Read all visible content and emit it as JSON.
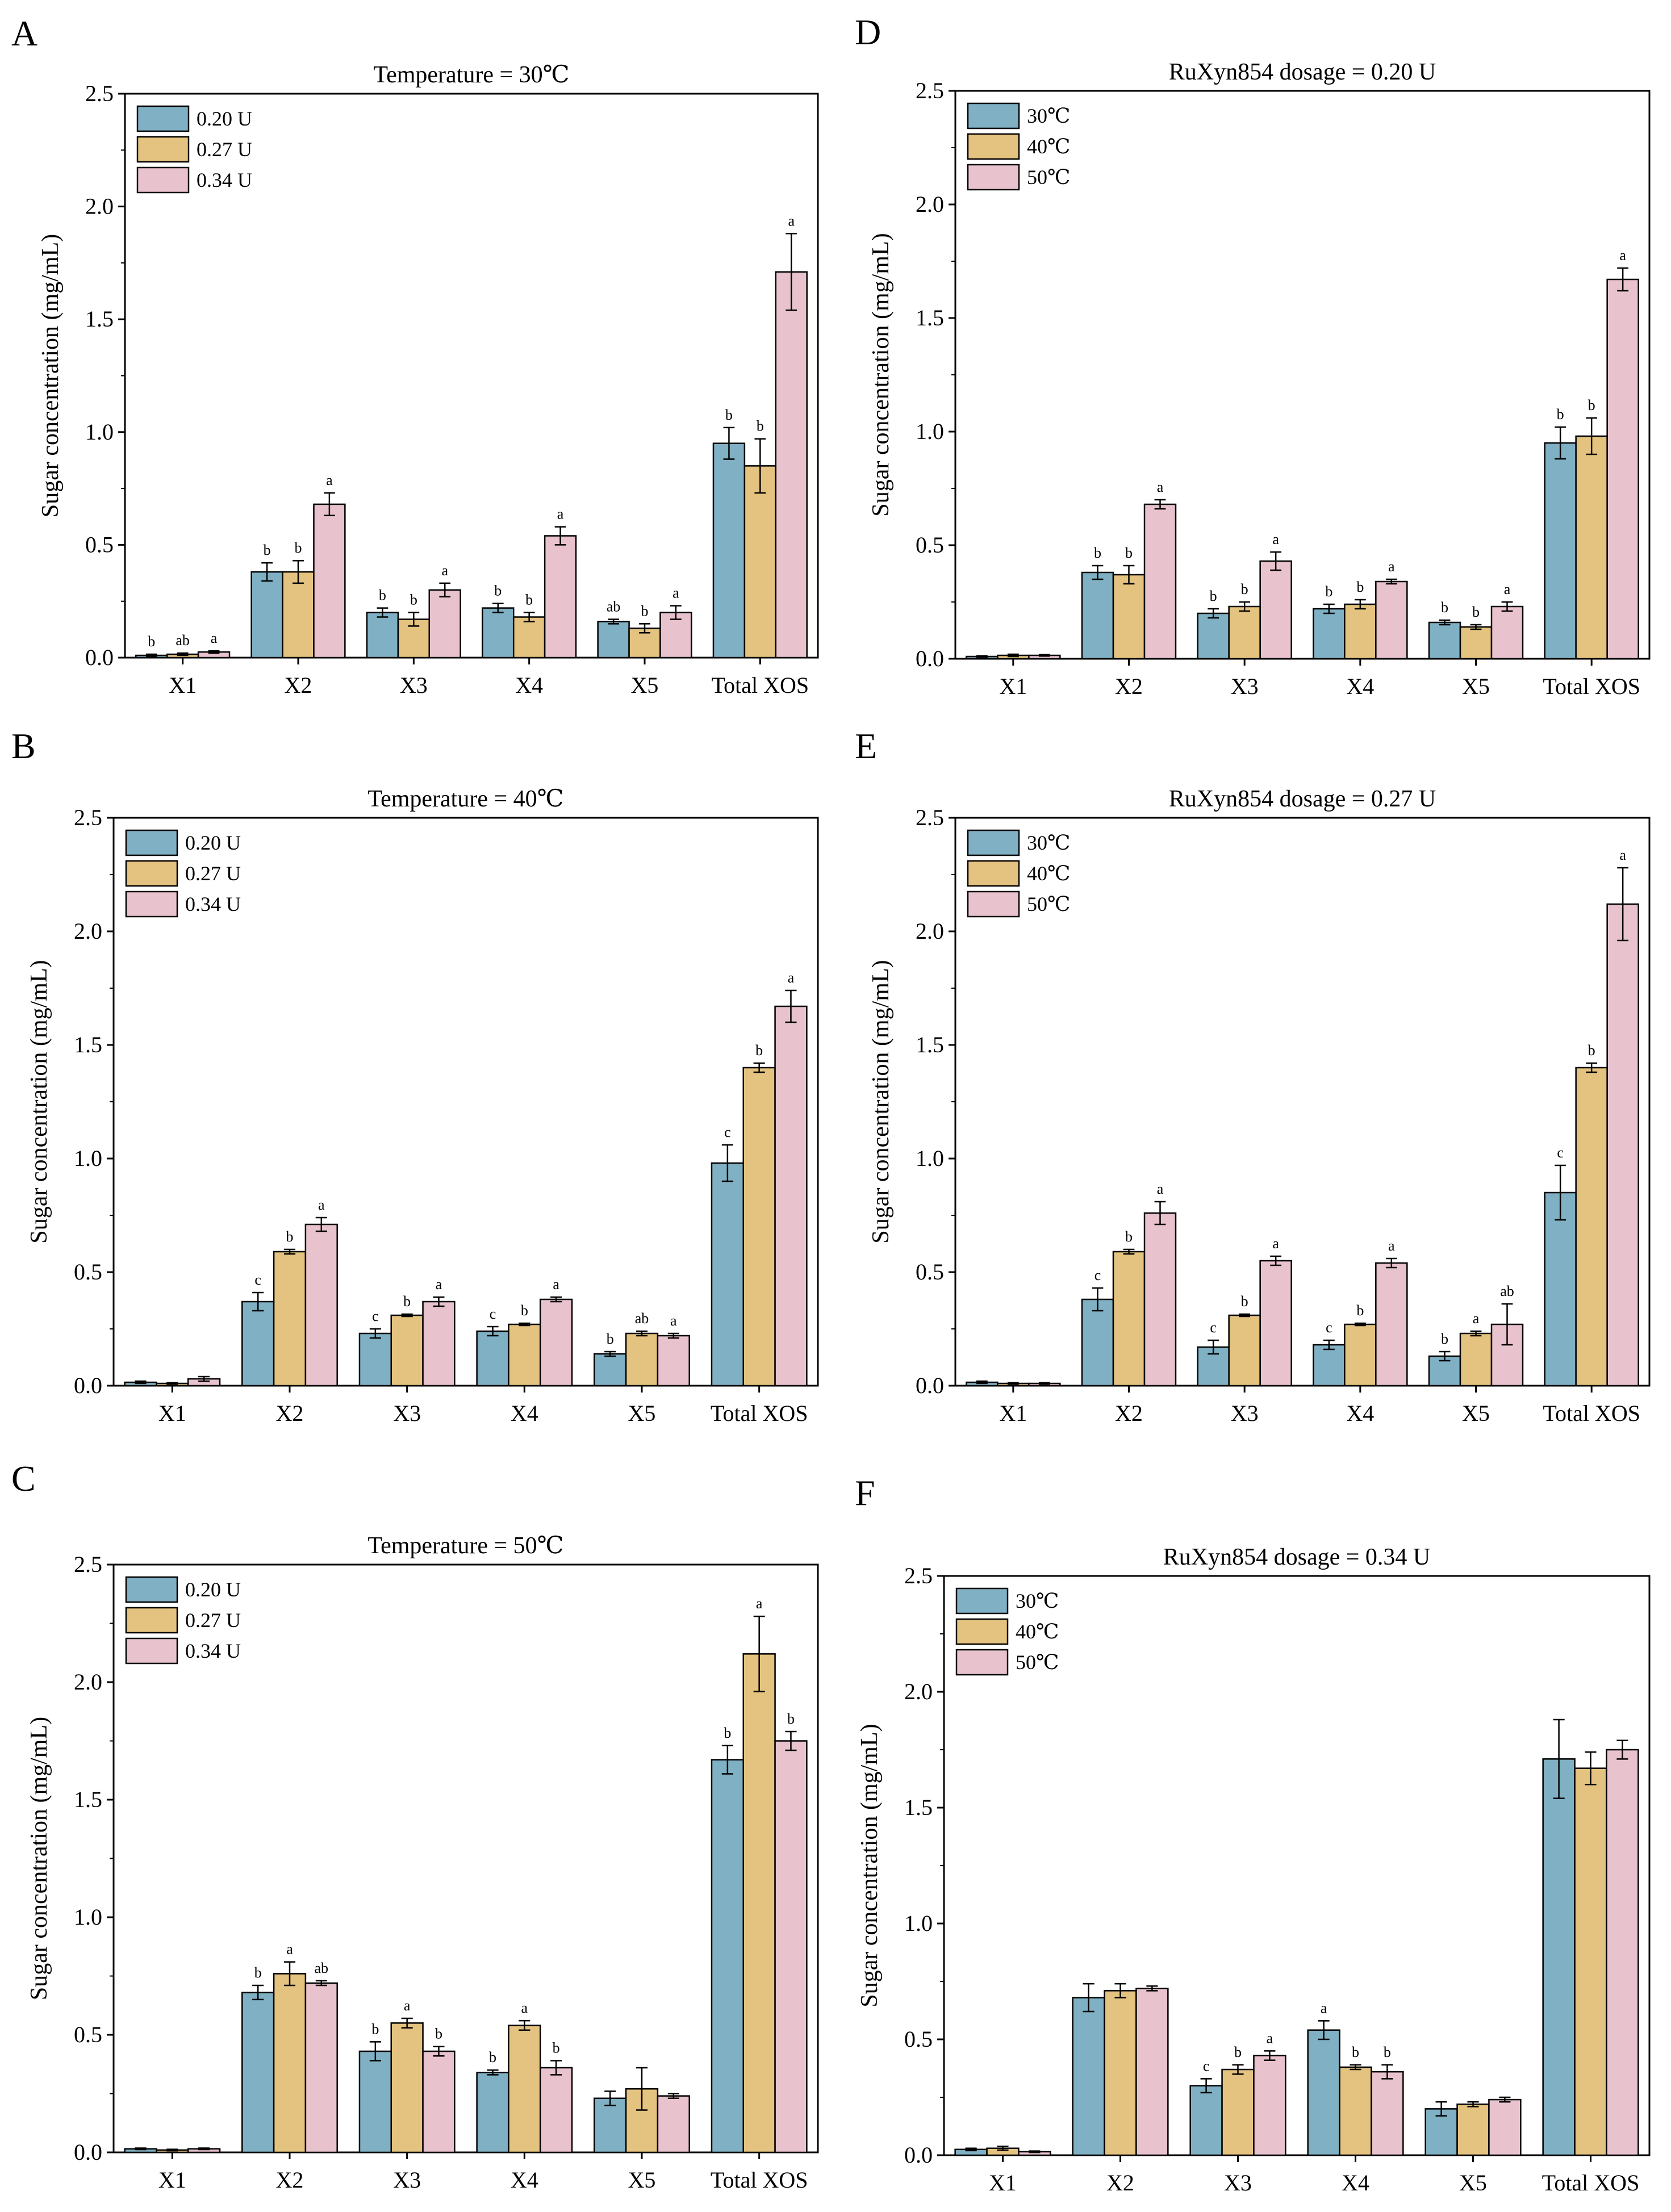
{
  "colors": {
    "blue": "#7fb0c3",
    "gold": "#e4c27f",
    "pink": "#e8c3cd",
    "frame": "#000000"
  },
  "chart_data": [
    {
      "panel": "A",
      "type": "bar",
      "title": "Temperature = 30℃",
      "xlabel": "",
      "ylabel": "Sugar concentration (mg/mL)",
      "ylim": [
        0,
        2.5
      ],
      "yticks": [
        "0.0",
        "0.5",
        "1.0",
        "1.5",
        "2.0",
        "2.5"
      ],
      "categories": [
        "X1",
        "X2",
        "X3",
        "X4",
        "X5",
        "Total XOS"
      ],
      "legend_position": "top-left",
      "series": [
        {
          "name": "0.20 U",
          "color": "blue",
          "values": [
            0.01,
            0.38,
            0.2,
            0.22,
            0.16,
            0.95
          ],
          "errors": [
            0.005,
            0.04,
            0.02,
            0.02,
            0.01,
            0.07
          ],
          "labels": [
            "b",
            "b",
            "b",
            "b",
            "ab",
            "b"
          ]
        },
        {
          "name": "0.27 U",
          "color": "gold",
          "values": [
            0.015,
            0.38,
            0.17,
            0.18,
            0.13,
            0.85
          ],
          "errors": [
            0.005,
            0.05,
            0.03,
            0.02,
            0.02,
            0.12
          ],
          "labels": [
            "ab",
            "b",
            "b",
            "b",
            "b",
            "b"
          ]
        },
        {
          "name": "0.34 U",
          "color": "pink",
          "values": [
            0.025,
            0.68,
            0.3,
            0.54,
            0.2,
            1.71
          ],
          "errors": [
            0.005,
            0.05,
            0.03,
            0.04,
            0.03,
            0.17
          ],
          "labels": [
            "a",
            "a",
            "a",
            "a",
            "a",
            "a"
          ]
        }
      ]
    },
    {
      "panel": "D",
      "type": "bar",
      "title": "RuXyn854 dosage = 0.20 U",
      "xlabel": "",
      "ylabel": "Sugar concentration (mg/mL)",
      "ylim": [
        0,
        2.5
      ],
      "yticks": [
        "0.0",
        "0.5",
        "1.0",
        "1.5",
        "2.0",
        "2.5"
      ],
      "categories": [
        "X1",
        "X2",
        "X3",
        "X4",
        "X5",
        "Total XOS"
      ],
      "legend_position": "top-left",
      "series": [
        {
          "name": "30℃",
          "color": "blue",
          "values": [
            0.01,
            0.38,
            0.2,
            0.22,
            0.16,
            0.95
          ],
          "errors": [
            0.003,
            0.03,
            0.02,
            0.02,
            0.01,
            0.07
          ],
          "labels": [
            "",
            "b",
            "b",
            "b",
            "b",
            "b"
          ]
        },
        {
          "name": "40℃",
          "color": "gold",
          "values": [
            0.015,
            0.37,
            0.23,
            0.24,
            0.14,
            0.98
          ],
          "errors": [
            0.005,
            0.04,
            0.02,
            0.02,
            0.01,
            0.08
          ],
          "labels": [
            "",
            "b",
            "b",
            "b",
            "b",
            "b"
          ]
        },
        {
          "name": "50℃",
          "color": "pink",
          "values": [
            0.015,
            0.68,
            0.43,
            0.34,
            0.23,
            1.67
          ],
          "errors": [
            0.003,
            0.02,
            0.04,
            0.01,
            0.02,
            0.05
          ],
          "labels": [
            "",
            "a",
            "a",
            "a",
            "a",
            "a"
          ]
        }
      ]
    },
    {
      "panel": "B",
      "type": "bar",
      "title": "Temperature = 40℃",
      "xlabel": "",
      "ylabel": "Sugar concentration (mg/mL)",
      "ylim": [
        0,
        2.5
      ],
      "yticks": [
        "0.0",
        "0.5",
        "1.0",
        "1.5",
        "2.0",
        "2.5"
      ],
      "categories": [
        "X1",
        "X2",
        "X3",
        "X4",
        "X5",
        "Total XOS"
      ],
      "legend_position": "top-left",
      "series": [
        {
          "name": "0.20 U",
          "color": "blue",
          "values": [
            0.015,
            0.37,
            0.23,
            0.24,
            0.14,
            0.98
          ],
          "errors": [
            0.005,
            0.04,
            0.02,
            0.02,
            0.01,
            0.08
          ],
          "labels": [
            "",
            "c",
            "c",
            "c",
            "b",
            "c"
          ]
        },
        {
          "name": "0.27 U",
          "color": "gold",
          "values": [
            0.01,
            0.59,
            0.31,
            0.27,
            0.23,
            1.4
          ],
          "errors": [
            0.003,
            0.01,
            0.005,
            0.005,
            0.01,
            0.02
          ],
          "labels": [
            "",
            "b",
            "b",
            "b",
            "ab",
            "b"
          ]
        },
        {
          "name": "0.34 U",
          "color": "pink",
          "values": [
            0.03,
            0.71,
            0.37,
            0.38,
            0.22,
            1.67
          ],
          "errors": [
            0.01,
            0.03,
            0.02,
            0.01,
            0.01,
            0.07
          ],
          "labels": [
            "",
            "a",
            "a",
            "a",
            "a",
            "a"
          ]
        }
      ]
    },
    {
      "panel": "E",
      "type": "bar",
      "title": "RuXyn854 dosage = 0.27 U",
      "xlabel": "",
      "ylabel": "Sugar concentration (mg/mL)",
      "ylim": [
        0,
        2.5
      ],
      "yticks": [
        "0.0",
        "0.5",
        "1.0",
        "1.5",
        "2.0",
        "2.5"
      ],
      "categories": [
        "X1",
        "X2",
        "X3",
        "X4",
        "X5",
        "Total XOS"
      ],
      "legend_position": "top-left",
      "series": [
        {
          "name": "30℃",
          "color": "blue",
          "values": [
            0.015,
            0.38,
            0.17,
            0.18,
            0.13,
            0.85
          ],
          "errors": [
            0.005,
            0.05,
            0.03,
            0.02,
            0.02,
            0.12
          ],
          "labels": [
            "",
            "c",
            "c",
            "c",
            "b",
            "c"
          ]
        },
        {
          "name": "40℃",
          "color": "gold",
          "values": [
            0.01,
            0.59,
            0.31,
            0.27,
            0.23,
            1.4
          ],
          "errors": [
            0.003,
            0.01,
            0.005,
            0.005,
            0.01,
            0.02
          ],
          "labels": [
            "",
            "b",
            "b",
            "b",
            "a",
            "b"
          ]
        },
        {
          "name": "50℃",
          "color": "pink",
          "values": [
            0.01,
            0.76,
            0.55,
            0.54,
            0.27,
            2.12
          ],
          "errors": [
            0.003,
            0.05,
            0.02,
            0.02,
            0.09,
            0.16
          ],
          "labels": [
            "",
            "a",
            "a",
            "a",
            "ab",
            "a"
          ]
        }
      ]
    },
    {
      "panel": "C",
      "type": "bar",
      "title": "Temperature = 50℃",
      "xlabel": "",
      "ylabel": "Sugar concentration (mg/mL)",
      "ylim": [
        0,
        2.5
      ],
      "yticks": [
        "0.0",
        "0.5",
        "1.0",
        "1.5",
        "2.0",
        "2.5"
      ],
      "categories": [
        "X1",
        "X2",
        "X3",
        "X4",
        "X5",
        "Total XOS"
      ],
      "legend_position": "top-left",
      "series": [
        {
          "name": "0.20 U",
          "color": "blue",
          "values": [
            0.015,
            0.68,
            0.43,
            0.34,
            0.23,
            1.67
          ],
          "errors": [
            0.003,
            0.03,
            0.04,
            0.01,
            0.03,
            0.06
          ],
          "labels": [
            "",
            "b",
            "b",
            "b",
            "",
            "b"
          ]
        },
        {
          "name": "0.27 U",
          "color": "gold",
          "values": [
            0.01,
            0.76,
            0.55,
            0.54,
            0.27,
            2.12
          ],
          "errors": [
            0.003,
            0.05,
            0.02,
            0.02,
            0.09,
            0.16
          ],
          "labels": [
            "",
            "a",
            "a",
            "a",
            "",
            "a"
          ]
        },
        {
          "name": "0.34 U",
          "color": "pink",
          "values": [
            0.015,
            0.72,
            0.43,
            0.36,
            0.24,
            1.75
          ],
          "errors": [
            0.003,
            0.01,
            0.02,
            0.03,
            0.01,
            0.04
          ],
          "labels": [
            "",
            "ab",
            "b",
            "b",
            "",
            "b"
          ]
        }
      ]
    },
    {
      "panel": "F",
      "type": "bar",
      "title": "RuXyn854 dosage = 0.34 U",
      "xlabel": "",
      "ylabel": "Sugar concentration (mg/mL)",
      "ylim": [
        0,
        2.5
      ],
      "yticks": [
        "0.0",
        "0.5",
        "1.0",
        "1.5",
        "2.0",
        "2.5"
      ],
      "categories": [
        "X1",
        "X2",
        "X3",
        "X4",
        "X5",
        "Total XOS"
      ],
      "legend_position": "top-left",
      "series": [
        {
          "name": "30℃",
          "color": "blue",
          "values": [
            0.025,
            0.68,
            0.3,
            0.54,
            0.2,
            1.71
          ],
          "errors": [
            0.005,
            0.06,
            0.03,
            0.04,
            0.03,
            0.17
          ],
          "labels": [
            "",
            "",
            "c",
            "a",
            "",
            ""
          ]
        },
        {
          "name": "40℃",
          "color": "gold",
          "values": [
            0.03,
            0.71,
            0.37,
            0.38,
            0.22,
            1.67
          ],
          "errors": [
            0.008,
            0.03,
            0.02,
            0.01,
            0.01,
            0.07
          ],
          "labels": [
            "",
            "",
            "b",
            "b",
            "",
            ""
          ]
        },
        {
          "name": "50℃",
          "color": "pink",
          "values": [
            0.015,
            0.72,
            0.43,
            0.36,
            0.24,
            1.75
          ],
          "errors": [
            0.003,
            0.01,
            0.02,
            0.03,
            0.01,
            0.04
          ],
          "labels": [
            "",
            "",
            "a",
            "b",
            "",
            ""
          ]
        }
      ]
    }
  ]
}
